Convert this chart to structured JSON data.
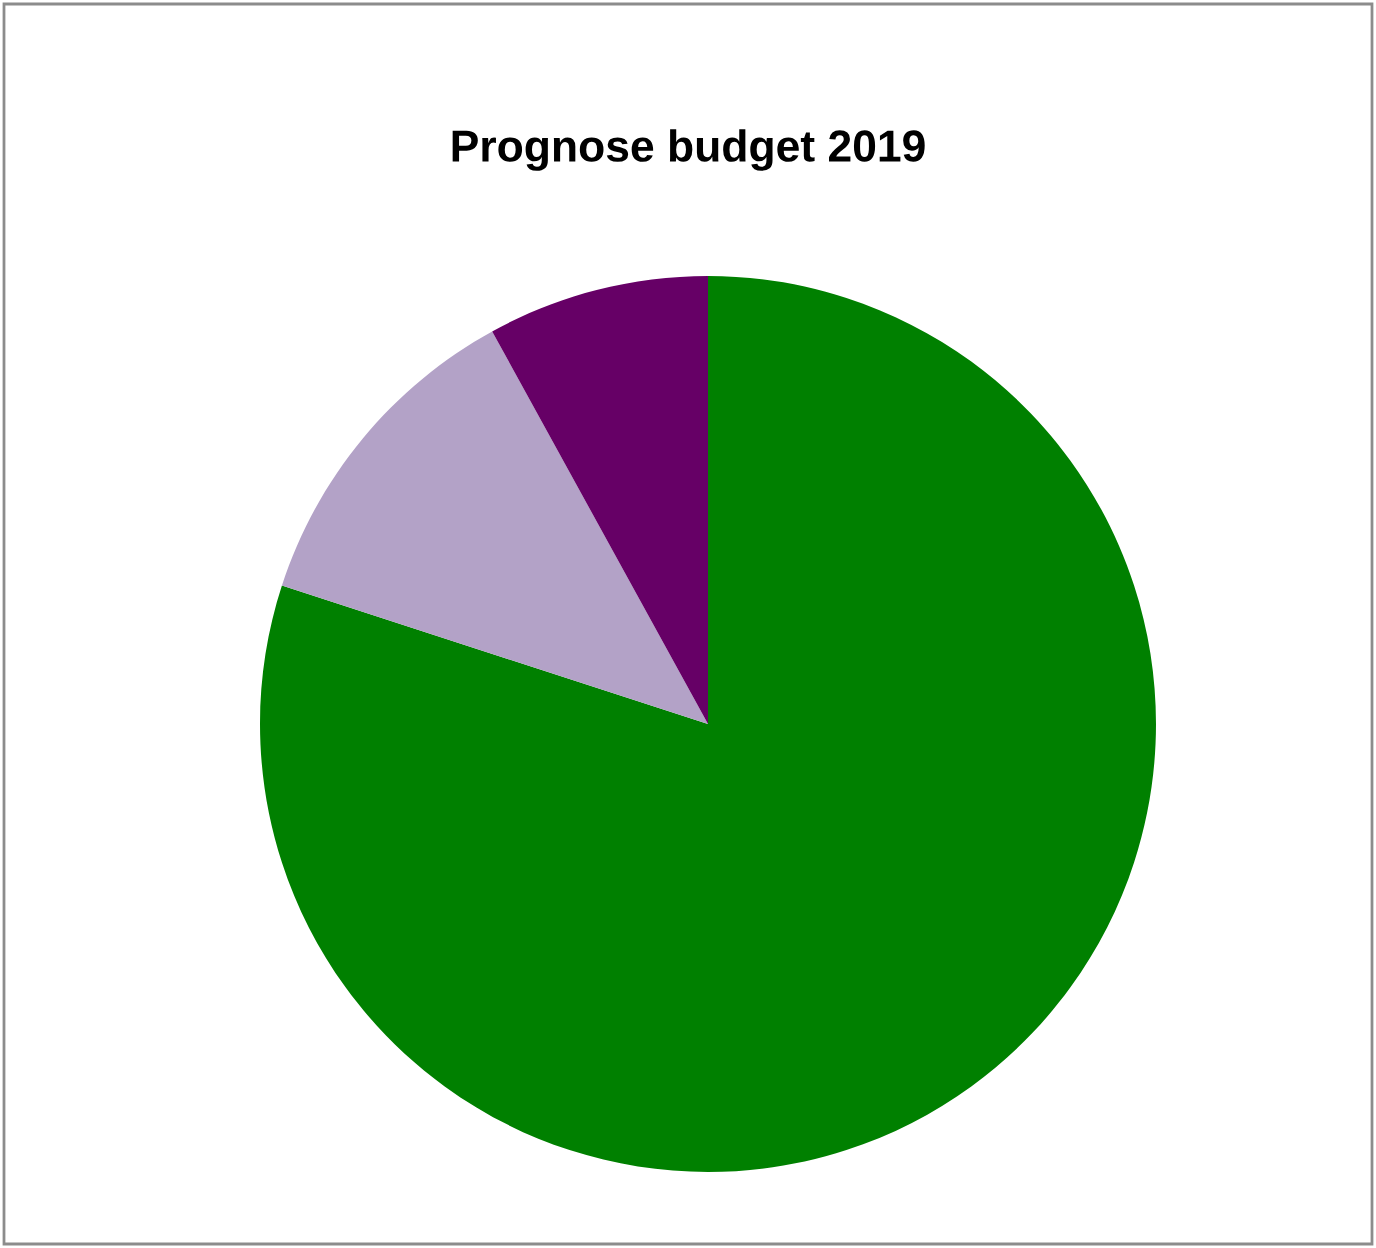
{
  "chart_data": {
    "type": "pie",
    "title": "Prognose budget 2019",
    "categories": [
      null,
      null,
      null
    ],
    "values": [
      80,
      12,
      8
    ],
    "colors": [
      "#008000",
      "#b3a2c7",
      "#660066"
    ]
  }
}
